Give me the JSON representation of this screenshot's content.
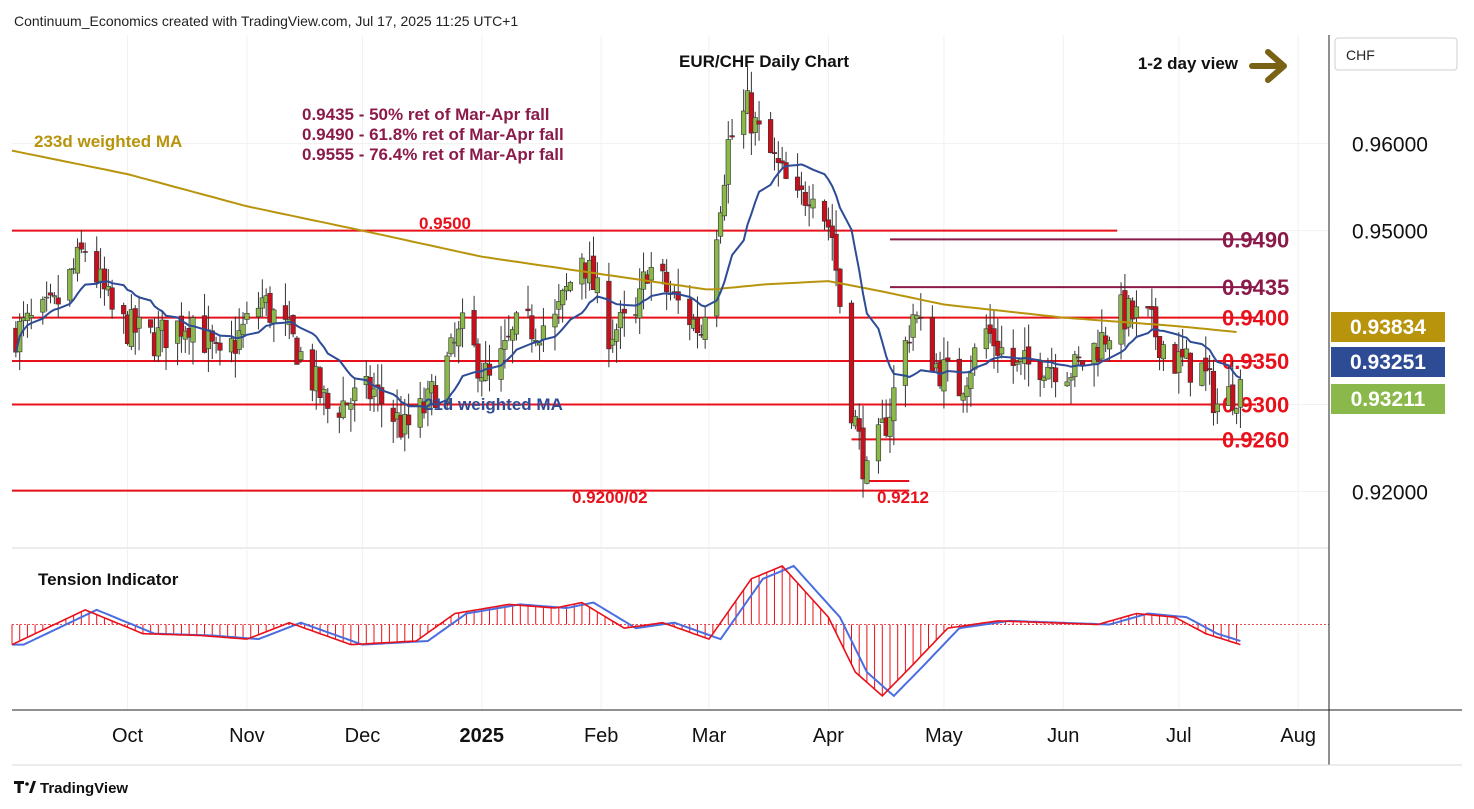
{
  "header": {
    "credit": "Continuum_Economics created with TradingView.com, Jul 17, 2025 11:25 UTC+1"
  },
  "footer": {
    "brand": "TradingView"
  },
  "colors": {
    "up_candle": "#8ab84a",
    "down_candle": "#c8101c",
    "wma21": "#2e4c96",
    "wma233": "#b8940c",
    "fib_text": "#8b1a4a",
    "level_line": "#e8101a",
    "arrow": "#7a6214",
    "tension_red": "#e8101a",
    "tension_blue": "#4a6ee0"
  },
  "chart_data": {
    "type": "candlestick",
    "title": "EUR/CHF Daily Chart",
    "view_label": "1-2 day view",
    "currency": "CHF",
    "ylim": [
      0.9135,
      0.9725
    ],
    "y_ticks": [
      "0.96000",
      "0.95000",
      "0.93000",
      "0.92000"
    ],
    "x_ticks": [
      "Oct",
      "Nov",
      "Dec",
      "2025",
      "Feb",
      "Mar",
      "Apr",
      "May",
      "Jun",
      "Jul",
      "Aug"
    ],
    "price_badges": [
      {
        "label": "0.93834",
        "value": 0.93834,
        "color": "#b8940c"
      },
      {
        "label": "0.93251",
        "value": 0.93251,
        "color": "#2e4c96"
      },
      {
        "label": "0.93211",
        "value": 0.93211,
        "color": "#8ab84a"
      }
    ],
    "annotations": {
      "wma233": "233d weighted MA",
      "wma21": "21d weighted MA",
      "fib_lines": [
        "0.9435 - 50% ret of Mar-Apr fall",
        "0.9490 - 61.8% ret of Mar-Apr fall",
        "0.9555 - 76.4% ret of Mar-Apr fall"
      ],
      "level_0_9500": "0.9500",
      "level_0_9200": "0.9200/02",
      "level_0_9212": "0.9212"
    },
    "levels": [
      {
        "label": "0.9490",
        "value": 0.949,
        "from": "2025-04-17",
        "to": "2025-07-21",
        "color": "#8b1a4a",
        "label_color": "#8b1a4a"
      },
      {
        "label": "0.9435",
        "value": 0.9435,
        "from": "2025-04-17",
        "to": "2025-07-21",
        "color": "#8b1a4a",
        "label_color": "#8b1a4a"
      },
      {
        "label": "0.9400",
        "value": 0.94,
        "from": "2024-09-01",
        "to": "2025-07-21",
        "color": "#e8101a",
        "label_color": "#e8101a"
      },
      {
        "label": "0.9350",
        "value": 0.935,
        "from": "2024-09-01",
        "to": "2025-07-21",
        "color": "#e8101a",
        "label_color": "#e8101a"
      },
      {
        "label": "0.9300",
        "value": 0.93,
        "from": "2024-09-01",
        "to": "2025-07-21",
        "color": "#e8101a",
        "label_color": "#e8101a"
      },
      {
        "label": "0.9260",
        "value": 0.926,
        "from": "2025-04-07",
        "to": "2025-07-21",
        "color": "#e8101a",
        "label_color": "#e8101a"
      },
      {
        "label": "",
        "value": 0.95,
        "from": "2024-09-01",
        "to": "2025-06-15",
        "color": "#e8101a"
      },
      {
        "label": "",
        "value": 0.9201,
        "from": "2024-09-01",
        "to": "2025-04-22",
        "color": "#e8101a"
      },
      {
        "label": "",
        "value": 0.9212,
        "from": "2025-04-11",
        "to": "2025-04-22",
        "color": "#e8101a"
      }
    ],
    "price_anchors": [
      [
        "2024-09-01",
        0.938
      ],
      [
        "2024-09-12",
        0.941
      ],
      [
        "2024-09-20",
        0.948
      ],
      [
        "2024-09-28",
        0.9395
      ],
      [
        "2024-10-08",
        0.9375
      ],
      [
        "2024-10-18",
        0.94
      ],
      [
        "2024-10-25",
        0.9345
      ],
      [
        "2024-11-05",
        0.942
      ],
      [
        "2024-11-14",
        0.9365
      ],
      [
        "2024-11-22",
        0.9295
      ],
      [
        "2024-12-04",
        0.9315
      ],
      [
        "2024-12-12",
        0.927
      ],
      [
        "2024-12-18",
        0.93
      ],
      [
        "2024-12-27",
        0.9385
      ],
      [
        "2025-01-03",
        0.9325
      ],
      [
        "2025-01-10",
        0.9385
      ],
      [
        "2025-01-20",
        0.9395
      ],
      [
        "2025-01-27",
        0.9475
      ],
      [
        "2025-02-03",
        0.9385
      ],
      [
        "2025-02-10",
        0.9395
      ],
      [
        "2025-02-13",
        0.946
      ],
      [
        "2025-02-20",
        0.942
      ],
      [
        "2025-02-27",
        0.9385
      ],
      [
        "2025-03-06",
        0.96
      ],
      [
        "2025-03-11",
        0.964
      ],
      [
        "2025-03-14",
        0.961
      ],
      [
        "2025-03-24",
        0.953
      ],
      [
        "2025-03-28",
        0.9555
      ],
      [
        "2025-04-02",
        0.9495
      ],
      [
        "2025-04-07",
        0.93
      ],
      [
        "2025-04-11",
        0.9215
      ],
      [
        "2025-04-17",
        0.9295
      ],
      [
        "2025-04-23",
        0.9405
      ],
      [
        "2025-04-29",
        0.9345
      ],
      [
        "2025-05-05",
        0.932
      ],
      [
        "2025-05-12",
        0.9385
      ],
      [
        "2025-05-20",
        0.934
      ],
      [
        "2025-05-27",
        0.935
      ],
      [
        "2025-06-04",
        0.934
      ],
      [
        "2025-06-11",
        0.9375
      ],
      [
        "2025-06-16",
        0.9405
      ],
      [
        "2025-06-23",
        0.9395
      ],
      [
        "2025-06-30",
        0.935
      ],
      [
        "2025-07-07",
        0.934
      ],
      [
        "2025-07-11",
        0.93
      ],
      [
        "2025-07-17",
        0.9321
      ]
    ],
    "wma233_anchors": [
      [
        "2024-09-01",
        0.9592
      ],
      [
        "2024-10-01",
        0.9565
      ],
      [
        "2024-11-01",
        0.9528
      ],
      [
        "2024-12-01",
        0.95
      ],
      [
        "2025-01-01",
        0.947
      ],
      [
        "2025-02-01",
        0.945
      ],
      [
        "2025-03-01",
        0.9432
      ],
      [
        "2025-03-15",
        0.9438
      ],
      [
        "2025-04-01",
        0.9442
      ],
      [
        "2025-04-15",
        0.943
      ],
      [
        "2025-05-01",
        0.9415
      ],
      [
        "2025-06-01",
        0.94
      ],
      [
        "2025-07-01",
        0.939
      ],
      [
        "2025-07-17",
        0.9383
      ]
    ],
    "tension_anchors": [
      [
        "2024-09-01",
        -0.55
      ],
      [
        "2024-09-20",
        0.4
      ],
      [
        "2024-10-05",
        -0.25
      ],
      [
        "2024-10-20",
        -0.3
      ],
      [
        "2024-11-01",
        -0.4
      ],
      [
        "2024-11-12",
        0.05
      ],
      [
        "2024-11-20",
        -0.25
      ],
      [
        "2024-11-28",
        -0.55
      ],
      [
        "2024-12-15",
        -0.45
      ],
      [
        "2024-12-25",
        0.3
      ],
      [
        "2025-01-08",
        0.55
      ],
      [
        "2025-01-20",
        0.45
      ],
      [
        "2025-01-27",
        0.6
      ],
      [
        "2025-02-07",
        -0.1
      ],
      [
        "2025-02-17",
        0.05
      ],
      [
        "2025-03-01",
        -0.4
      ],
      [
        "2025-03-12",
        1.25
      ],
      [
        "2025-03-20",
        1.6
      ],
      [
        "2025-04-01",
        0.2
      ],
      [
        "2025-04-08",
        -1.3
      ],
      [
        "2025-04-15",
        -1.95
      ],
      [
        "2025-04-22",
        -1.2
      ],
      [
        "2025-05-02",
        -0.1
      ],
      [
        "2025-05-15",
        0.1
      ],
      [
        "2025-05-28",
        0.05
      ],
      [
        "2025-06-10",
        0.0
      ],
      [
        "2025-06-20",
        0.3
      ],
      [
        "2025-06-30",
        0.2
      ],
      [
        "2025-07-08",
        -0.25
      ],
      [
        "2025-07-17",
        -0.55
      ]
    ],
    "tension_range": [
      -2.2,
      1.9
    ]
  }
}
